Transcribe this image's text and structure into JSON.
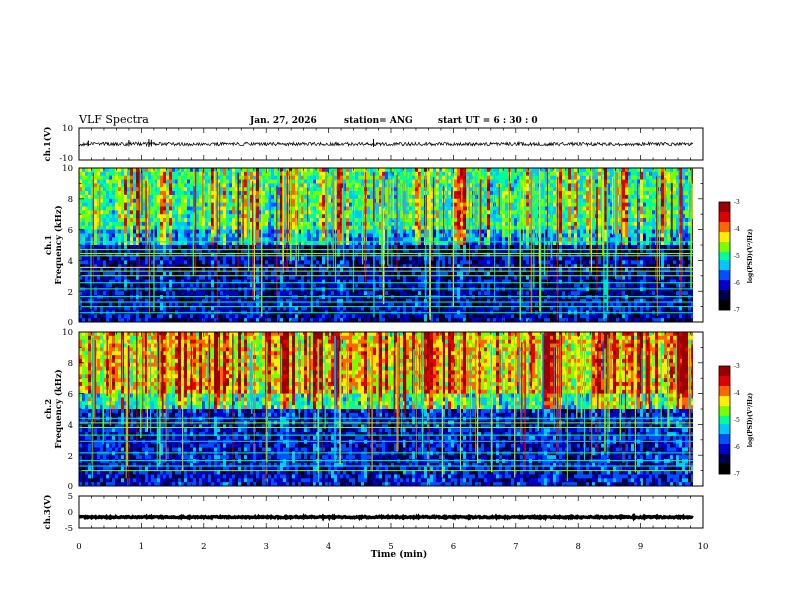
{
  "header": {
    "title": "VLF Spectra",
    "date": "Jan. 27, 2026",
    "station": "station= ANG",
    "start_ut": "start UT =  6 : 30 : 0"
  },
  "colors": {
    "scale": [
      "#000000",
      "#00004a",
      "#0000c8",
      "#0050ff",
      "#00c8ff",
      "#00ff9a",
      "#7aff00",
      "#ffee00",
      "#ff6600",
      "#e10000",
      "#9a0000"
    ],
    "trace": "#000000",
    "axis": "#000000"
  },
  "chart_data": [
    {
      "id": "ch1-waveform",
      "type": "line",
      "ylabel": "ch.1(V)",
      "ylim": [
        -10,
        10
      ],
      "yticks": [
        "10",
        "-10"
      ],
      "xlim": [
        0,
        10
      ],
      "baseline_v": 0
    },
    {
      "id": "ch1-spectrogram",
      "type": "heatmap",
      "ylabel": "ch.1\nFrequency  (kHz)",
      "ylim": [
        0,
        10
      ],
      "yticks": [
        "0",
        "2",
        "4",
        "6",
        "8",
        "10"
      ],
      "xlim": [
        0,
        10
      ],
      "colorbar": {
        "label": "log(PSD)(V²/Hz)",
        "range": [
          -7,
          -3
        ],
        "ticks": [
          "-3",
          "-4",
          "-5",
          "-6",
          "-7"
        ]
      },
      "persistent_lines_khz": [
        0.6,
        1.0,
        1.3,
        1.65,
        2.15,
        2.55,
        3.0,
        3.3,
        3.55,
        4.3,
        4.45,
        4.7,
        5.2
      ],
      "description_levels": {
        "below_6khz": -6.3,
        "above_6khz": -5.2
      }
    },
    {
      "id": "ch2-spectrogram",
      "type": "heatmap",
      "ylabel": "ch.2\nFrequency  (kHz)",
      "ylim": [
        0,
        10
      ],
      "yticks": [
        "0",
        "2",
        "4",
        "6",
        "8",
        "10"
      ],
      "xlim": [
        0,
        10
      ],
      "colorbar": {
        "label": "log(PSD)(V²/Hz)",
        "range": [
          -7,
          -3
        ],
        "ticks": [
          "-3",
          "-4",
          "-5",
          "-6",
          "-7"
        ]
      },
      "persistent_lines_khz": [
        1.0,
        1.3,
        1.65,
        2.15,
        2.9,
        3.3,
        3.8,
        4.1,
        4.4
      ],
      "description_levels": {
        "below_6khz": -6.2,
        "above_6khz": -4.6
      }
    },
    {
      "id": "ch3-waveform",
      "type": "line",
      "ylabel": "ch.3(V)",
      "ylim": [
        -5,
        5
      ],
      "yticks": [
        "5",
        "0",
        "-5"
      ],
      "xlim": [
        0,
        10
      ],
      "baseline_v": -1.6
    }
  ],
  "xaxis": {
    "label": "Time  (min)",
    "ticks": [
      "0",
      "1",
      "2",
      "3",
      "4",
      "5",
      "6",
      "7",
      "8",
      "9",
      "10"
    ]
  }
}
